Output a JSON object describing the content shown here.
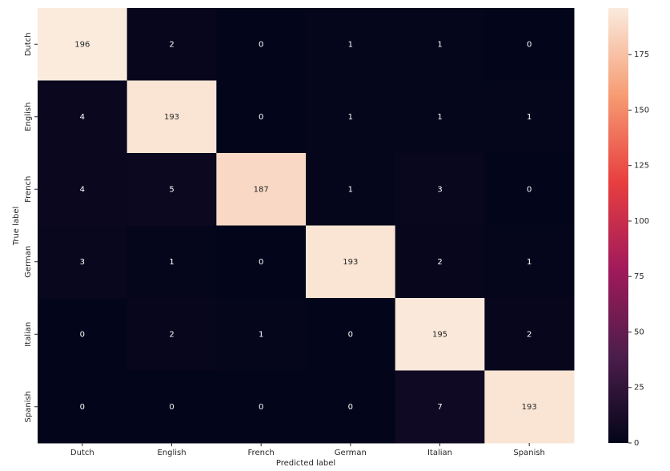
{
  "chart_data": {
    "type": "heatmap",
    "x_label": "Predicted label",
    "y_label": "True label",
    "x_categories": [
      "Dutch",
      "English",
      "French",
      "German",
      "Italian",
      "Spanish"
    ],
    "y_categories": [
      "Dutch",
      "English",
      "French",
      "German",
      "Italian",
      "Spanish"
    ],
    "values": [
      [
        196,
        2,
        0,
        1,
        1,
        0
      ],
      [
        4,
        193,
        0,
        1,
        1,
        1
      ],
      [
        4,
        5,
        187,
        1,
        3,
        0
      ],
      [
        3,
        1,
        0,
        193,
        2,
        1
      ],
      [
        0,
        2,
        1,
        0,
        195,
        2
      ],
      [
        0,
        0,
        0,
        0,
        7,
        193
      ]
    ],
    "colormap": [
      "#03051a",
      "#4c1d4b",
      "#a11a5b",
      "#e83f3f",
      "#f69c73",
      "#faebdd"
    ],
    "zlim": [
      0,
      196
    ],
    "zticks": [
      0,
      25,
      50,
      75,
      100,
      125,
      150,
      175
    ]
  }
}
